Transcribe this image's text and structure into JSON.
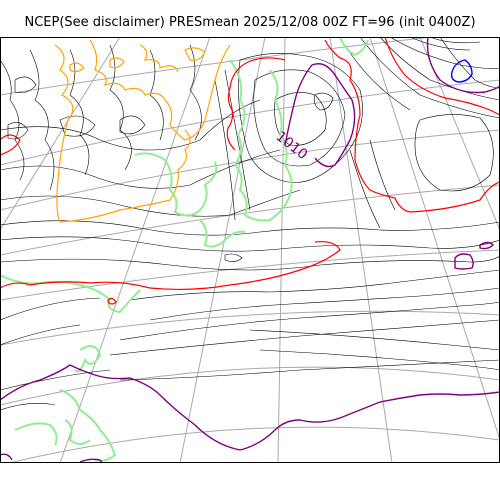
{
  "figure": {
    "title": "NCEP(See disclaimer) PRESmean 2025/12/08 00Z FT=96 (init 0400Z)"
  },
  "map": {
    "contour_labels": [
      {
        "text": "1010",
        "color": "#800080"
      }
    ],
    "colors": {
      "isobar_default": "#000000",
      "isobar_red": "#ff0000",
      "isobar_purple": "#800080",
      "isobar_orange": "#ffa500",
      "isobar_blue": "#0000ff",
      "coastline": "#90ee90",
      "graticule": "#a9a9a9"
    }
  }
}
